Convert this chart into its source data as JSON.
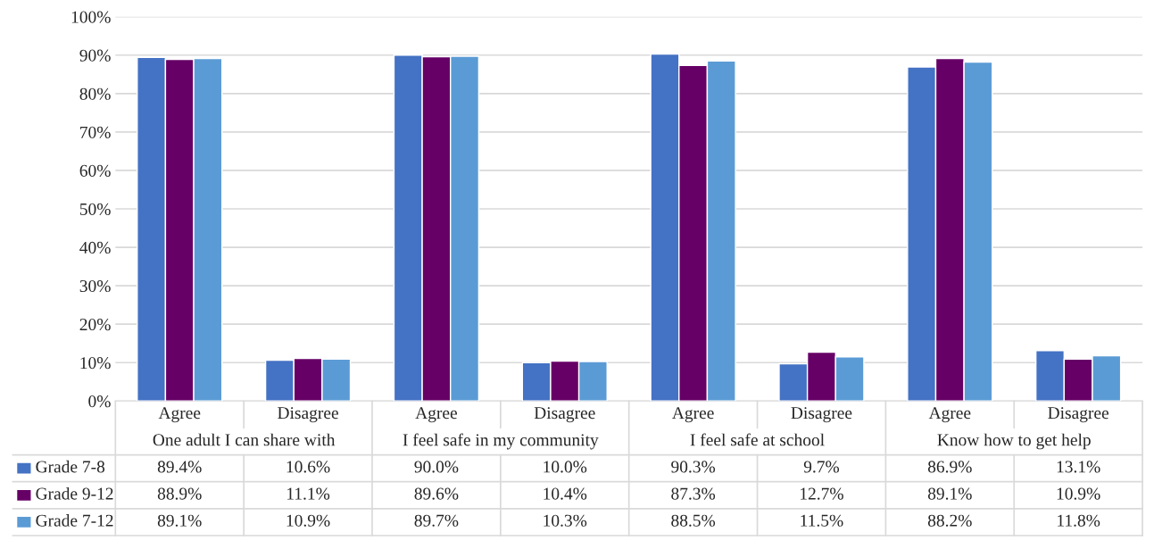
{
  "chart_data": {
    "type": "bar",
    "categories": [
      "Agree",
      "Disagree",
      "Agree",
      "Disagree",
      "Agree",
      "Disagree",
      "Agree",
      "Disagree"
    ],
    "annotations": [
      "One adult I can share with",
      "I feel safe in my community",
      "I feel safe at school",
      "Know how to get help"
    ],
    "series": [
      {
        "name": "Grade 7-8",
        "color": "#4472c4",
        "values": [
          89.4,
          10.6,
          90.0,
          10.0,
          90.3,
          9.7,
          86.9,
          13.1
        ],
        "value_labels": [
          "89.4%",
          "10.6%",
          "90.0%",
          "10.0%",
          "90.3%",
          "9.7%",
          "86.9%",
          "13.1%"
        ]
      },
      {
        "name": "Grade 9-12",
        "color": "#660066",
        "values": [
          88.9,
          11.1,
          89.6,
          10.4,
          87.3,
          12.7,
          89.1,
          10.9
        ],
        "value_labels": [
          "88.9%",
          "11.1%",
          "89.6%",
          "10.4%",
          "87.3%",
          "12.7%",
          "89.1%",
          "10.9%"
        ]
      },
      {
        "name": "Grade 7-12",
        "color": "#5b9bd5",
        "values": [
          89.1,
          10.9,
          89.7,
          10.3,
          88.5,
          11.5,
          88.2,
          11.8
        ],
        "value_labels": [
          "89.1%",
          "10.9%",
          "89.7%",
          "10.3%",
          "88.5%",
          "11.5%",
          "88.2%",
          "11.8%"
        ]
      }
    ],
    "ylim": [
      0,
      100
    ],
    "yticks": [
      {
        "value": 0,
        "label": "0%"
      },
      {
        "value": 10,
        "label": "10%"
      },
      {
        "value": 20,
        "label": "20%"
      },
      {
        "value": 30,
        "label": "30%"
      },
      {
        "value": 40,
        "label": "40%"
      },
      {
        "value": 50,
        "label": "50%"
      },
      {
        "value": 60,
        "label": "60%"
      },
      {
        "value": 70,
        "label": "70%"
      },
      {
        "value": 80,
        "label": "80%"
      },
      {
        "value": 90,
        "label": "90%"
      },
      {
        "value": 100,
        "label": "100%"
      }
    ],
    "grid": "y",
    "legend": "bottom"
  }
}
